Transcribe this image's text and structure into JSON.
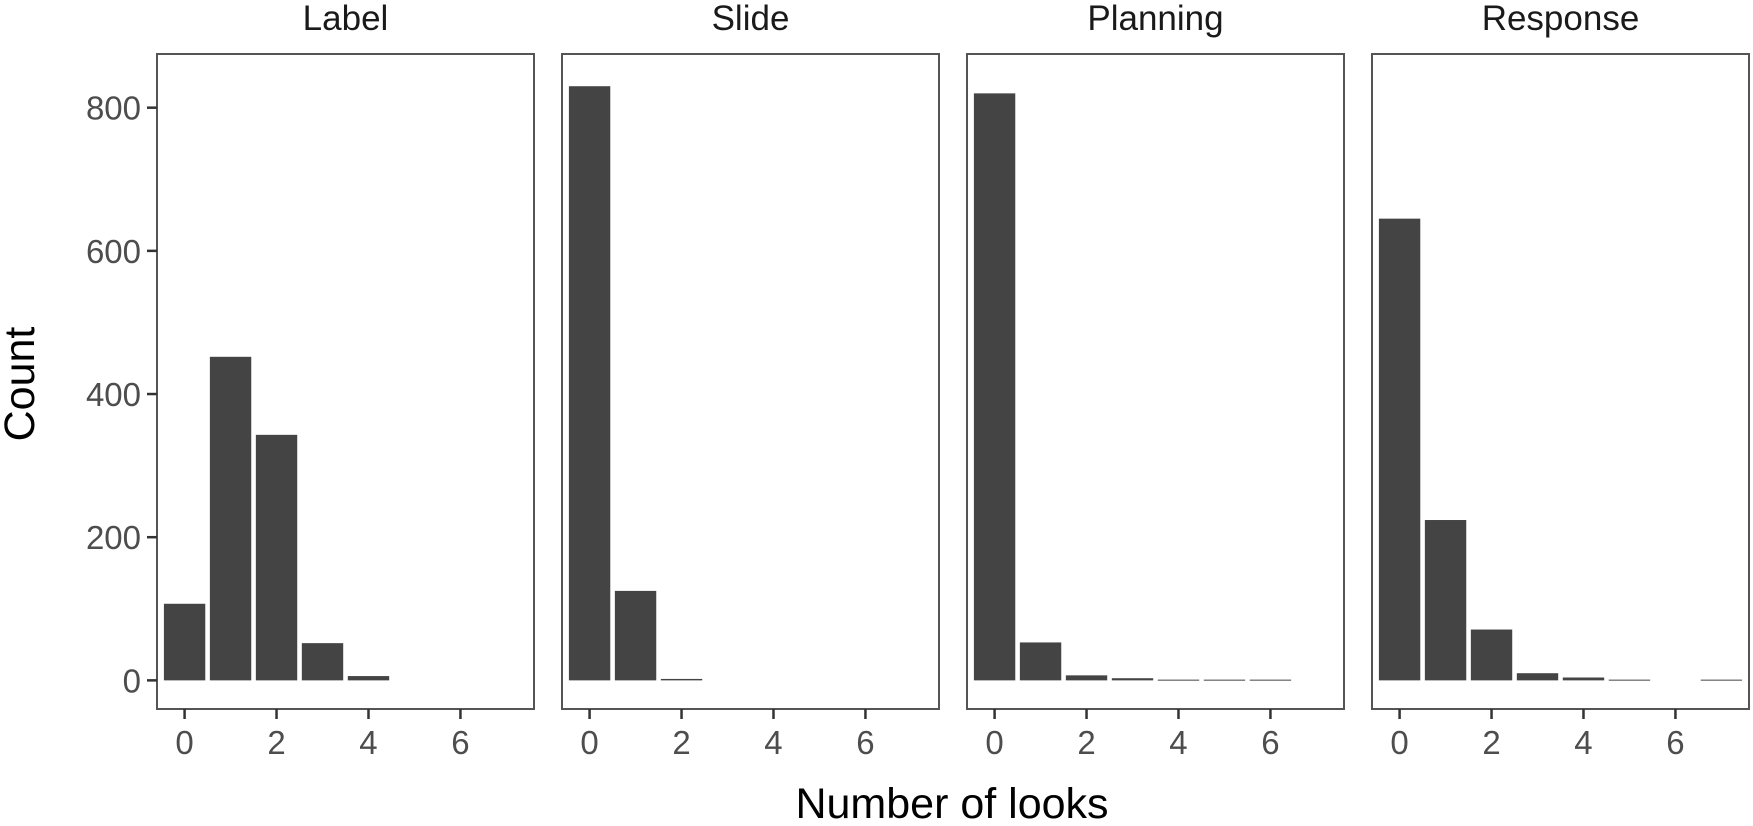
{
  "chart_data": {
    "type": "bar",
    "xlabel": "Number of looks",
    "ylabel": "Count",
    "xlim": [
      -0.6,
      7.6
    ],
    "ylim": [
      -40,
      875
    ],
    "x_ticks": [
      0,
      2,
      4,
      6
    ],
    "y_ticks": [
      0,
      200,
      400,
      600,
      800
    ],
    "grid": false,
    "bar_color": "#444444",
    "facets": [
      {
        "title": "Label",
        "x": [
          0,
          1,
          2,
          3,
          4
        ],
        "values": [
          107,
          452,
          343,
          52,
          6
        ]
      },
      {
        "title": "Slide",
        "x": [
          0,
          1,
          2
        ],
        "values": [
          830,
          125,
          2
        ]
      },
      {
        "title": "Planning",
        "x": [
          0,
          1,
          2,
          3,
          4,
          5,
          6
        ],
        "values": [
          820,
          53,
          7,
          3,
          1,
          1,
          1
        ]
      },
      {
        "title": "Response",
        "x": [
          0,
          1,
          2,
          3,
          4,
          5,
          7
        ],
        "values": [
          645,
          224,
          71,
          10,
          4,
          1,
          1
        ]
      }
    ]
  }
}
